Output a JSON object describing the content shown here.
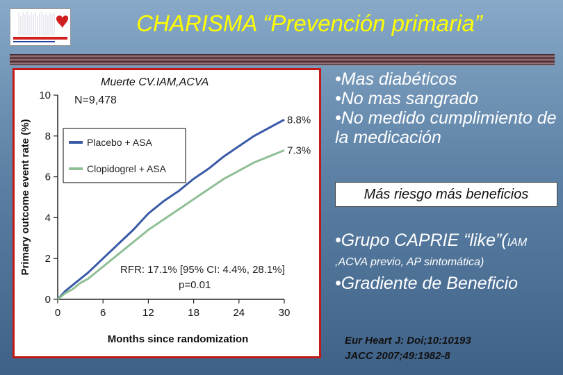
{
  "slide": {
    "title": "CHARISMA “Prevención primaria”",
    "bullets_top": [
      "•Mas diabéticos",
      "•No mas sangrado",
      "•No medido cumplimiento de la medicación"
    ],
    "callout": "Más riesgo más beneficios",
    "caprie_main": "•Grupo CAPRIE “like”(",
    "caprie_small": "IAM ,ACVA previo, AP sintomática)",
    "gradient": "•Gradiente de Beneficio",
    "references": [
      "Eur Heart J: Doi;10:10193",
      "JACC 2007;49:1982-8"
    ]
  },
  "colors": {
    "title": "#ffff00",
    "panel_border": "#c41818",
    "placebo": "#3a5aa8",
    "clopidogrel": "#8fbf95"
  },
  "chart_data": {
    "type": "line",
    "panel_label": "Muerte CV.IAM,ACVA",
    "n_label": "N=9,478",
    "xlabel": "Months since randomization",
    "ylabel": "Primary outcome event rate (%)",
    "xlim": [
      0,
      30
    ],
    "ylim": [
      0,
      10
    ],
    "xticks": [
      0,
      6,
      12,
      18,
      24,
      30
    ],
    "yticks": [
      0,
      2,
      4,
      6,
      8,
      10
    ],
    "legend_placement": "upper-left",
    "series": [
      {
        "name": "Placebo + ASA",
        "end_label": "8.8%",
        "color": "#3a5aa8",
        "x": [
          0,
          1,
          2,
          3,
          4,
          6,
          8,
          10,
          12,
          14,
          16,
          18,
          20,
          22,
          24,
          26,
          28,
          30
        ],
        "y": [
          0,
          0.4,
          0.7,
          1.0,
          1.3,
          2.0,
          2.7,
          3.4,
          4.2,
          4.8,
          5.3,
          5.9,
          6.4,
          7.0,
          7.5,
          8.0,
          8.4,
          8.8
        ]
      },
      {
        "name": "Clopidogrel + ASA",
        "end_label": "7.3%",
        "color": "#8fbf95",
        "x": [
          0,
          1,
          2,
          3,
          4,
          6,
          8,
          10,
          12,
          14,
          16,
          18,
          20,
          22,
          24,
          26,
          28,
          30
        ],
        "y": [
          0,
          0.3,
          0.5,
          0.8,
          1.0,
          1.6,
          2.2,
          2.8,
          3.4,
          3.9,
          4.4,
          4.9,
          5.4,
          5.9,
          6.3,
          6.7,
          7.0,
          7.3
        ]
      }
    ],
    "annotation_lines": [
      "RFR: 17.1% [95% CI: 4.4%, 28.1%]",
      "p=0.01"
    ]
  }
}
